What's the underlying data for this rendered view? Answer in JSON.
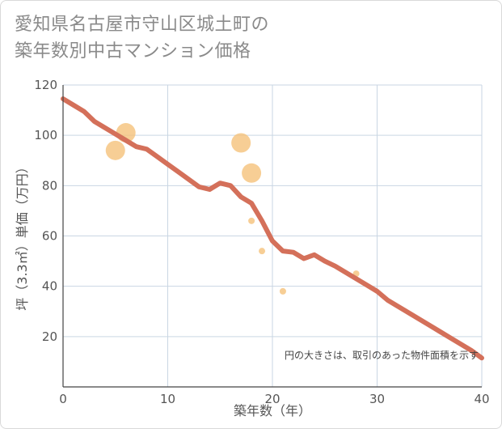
{
  "title_line1": "愛知県名古屋市守山区城土町の",
  "title_line2": "築年数別中古マンション価格",
  "chart_data": {
    "type": "scatter+line",
    "title": "愛知県名古屋市守山区城土町の築年数別中古マンション価格",
    "xlabel": "築年数（年）",
    "ylabel": "坪（3.3㎡）単価（万円）",
    "xlim": [
      0,
      40
    ],
    "ylim": [
      0,
      120
    ],
    "xticks": [
      0,
      10,
      20,
      30,
      40
    ],
    "yticks": [
      20,
      40,
      60,
      80,
      100,
      120
    ],
    "grid": true,
    "note": "円の大きさは、取引のあった物件面積を示す",
    "colors": {
      "line": "#d4705a",
      "bubble": "#f5c27a",
      "grid": "#c9d6e3",
      "axis": "#444444"
    },
    "trend_line": {
      "x": [
        0,
        1,
        2,
        3,
        4,
        5,
        6,
        7,
        8,
        9,
        10,
        11,
        12,
        13,
        14,
        15,
        16,
        17,
        18,
        19,
        20,
        21,
        22,
        23,
        24,
        25,
        26,
        27,
        28,
        29,
        30,
        31,
        32,
        33,
        34,
        35,
        36,
        37,
        38,
        39,
        40
      ],
      "y": [
        114.5,
        112,
        109.5,
        105.5,
        103,
        100.5,
        98,
        95.5,
        94.5,
        91.5,
        88.5,
        85.5,
        82.5,
        79.5,
        78.5,
        81,
        80,
        75.5,
        73,
        66,
        58,
        54,
        53.5,
        51,
        52.5,
        50,
        48,
        45.5,
        43,
        40.5,
        38,
        34.5,
        32,
        29.5,
        27,
        24.5,
        22,
        19.5,
        17,
        14.5,
        11.5
      ]
    },
    "points": [
      {
        "x": 5,
        "y": 94,
        "size": 12
      },
      {
        "x": 6,
        "y": 101,
        "size": 12
      },
      {
        "x": 17,
        "y": 97,
        "size": 12
      },
      {
        "x": 18,
        "y": 85,
        "size": 12
      },
      {
        "x": 18,
        "y": 66,
        "size": 4
      },
      {
        "x": 19,
        "y": 54,
        "size": 4
      },
      {
        "x": 21,
        "y": 38,
        "size": 4
      },
      {
        "x": 28,
        "y": 45,
        "size": 4
      }
    ]
  }
}
